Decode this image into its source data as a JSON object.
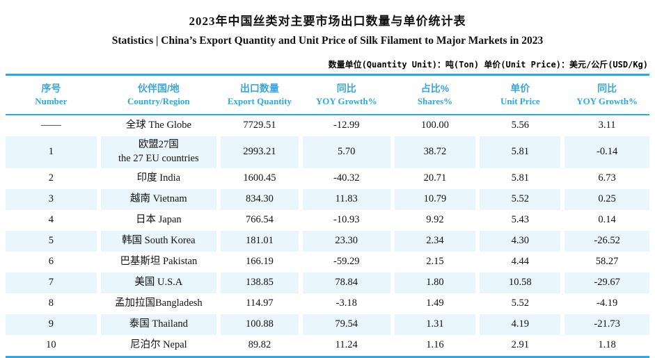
{
  "header": {
    "title_zh": "2023年中国丝类对主要市场出口数量与单价统计表",
    "title_en": "Statistics | China’s Export Quantity and Unit Price of Silk Filament to Major Markets in 2023",
    "units_note": "数量单位(Quantity Unit)：吨(Ton) 单价(Unit Price)：美元/公斤(USD/Kg)"
  },
  "colors": {
    "accent_line": "#29abe2",
    "header_text_zh": "#3ba6dd",
    "header_text_en": "#29abe2",
    "row_alt_background": "#e9f6fb",
    "body_text": "#111111"
  },
  "chart_data": {
    "type": "table",
    "title": "2023年中国丝类对主要市场出口数量与单价统计表",
    "subtitle": "Statistics | China’s Export Quantity and Unit Price of Silk Filament to Major Markets in 2023",
    "units": {
      "quantity_unit": "吨(Ton)",
      "unit_price_unit": "美元/公斤(USD/Kg)"
    },
    "columns": [
      {
        "key": "number",
        "zh": "序号",
        "en": "Number"
      },
      {
        "key": "country",
        "zh": "伙伴国/地",
        "en": "Country/Region"
      },
      {
        "key": "export_quantity",
        "zh": "出口数量",
        "en": "Export Quantity"
      },
      {
        "key": "yoy_growth",
        "zh": "同比",
        "en": "YOY Growth%"
      },
      {
        "key": "shares",
        "zh": "占比%",
        "en": "Shares%"
      },
      {
        "key": "unit_price",
        "zh": "单价",
        "en": "Unit Price"
      },
      {
        "key": "price_yoy_growth",
        "zh": "同比",
        "en": "YOY Growth%"
      }
    ],
    "rows": [
      {
        "number": "——",
        "country": "全球 The Globe",
        "export_quantity": "7729.51",
        "yoy_growth": "-12.99",
        "shares": "100.00",
        "unit_price": "5.56",
        "price_yoy_growth": "3.11"
      },
      {
        "number": "1",
        "country": "欧盟27国\nthe 27 EU countries",
        "export_quantity": "2993.21",
        "yoy_growth": "5.70",
        "shares": "38.72",
        "unit_price": "5.81",
        "price_yoy_growth": "-0.14"
      },
      {
        "number": "2",
        "country": "印度 India",
        "export_quantity": "1600.45",
        "yoy_growth": "-40.32",
        "shares": "20.71",
        "unit_price": "5.81",
        "price_yoy_growth": "6.73"
      },
      {
        "number": "3",
        "country": "越南 Vietnam",
        "export_quantity": "834.30",
        "yoy_growth": "11.83",
        "shares": "10.79",
        "unit_price": "5.52",
        "price_yoy_growth": "0.25"
      },
      {
        "number": "4",
        "country": "日本 Japan",
        "export_quantity": "766.54",
        "yoy_growth": "-10.93",
        "shares": "9.92",
        "unit_price": "5.43",
        "price_yoy_growth": "0.14"
      },
      {
        "number": "5",
        "country": "韩国 South Korea",
        "export_quantity": "181.01",
        "yoy_growth": "23.30",
        "shares": "2.34",
        "unit_price": "4.30",
        "price_yoy_growth": "-26.52"
      },
      {
        "number": "6",
        "country": "巴基斯坦 Pakistan",
        "export_quantity": "166.19",
        "yoy_growth": "-59.29",
        "shares": "2.15",
        "unit_price": "4.44",
        "price_yoy_growth": "58.27"
      },
      {
        "number": "7",
        "country": "美国 U.S.A",
        "export_quantity": "138.85",
        "yoy_growth": "78.84",
        "shares": "1.80",
        "unit_price": "10.58",
        "price_yoy_growth": "-29.67"
      },
      {
        "number": "8",
        "country": "孟加拉国Bangladesh",
        "export_quantity": "114.97",
        "yoy_growth": "-3.18",
        "shares": "1.49",
        "unit_price": "5.52",
        "price_yoy_growth": "-4.19"
      },
      {
        "number": "9",
        "country": "泰国 Thailand",
        "export_quantity": "100.88",
        "yoy_growth": "79.54",
        "shares": "1.31",
        "unit_price": "4.19",
        "price_yoy_growth": "-21.73"
      },
      {
        "number": "10",
        "country": "尼泊尔 Nepal",
        "export_quantity": "89.82",
        "yoy_growth": "11.24",
        "shares": "1.16",
        "unit_price": "2.91",
        "price_yoy_growth": "1.18"
      }
    ]
  }
}
